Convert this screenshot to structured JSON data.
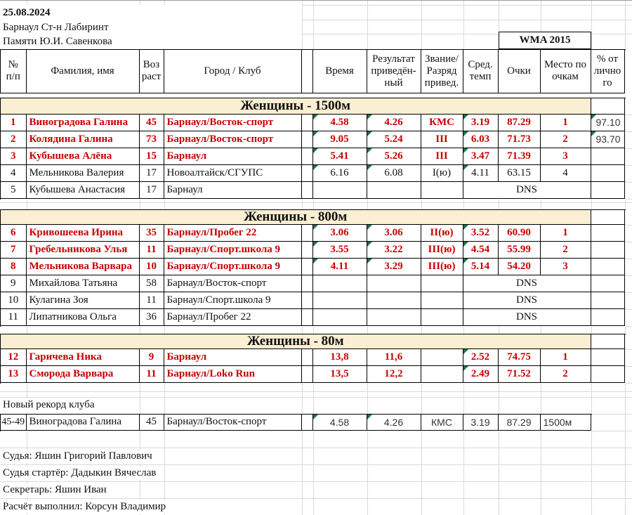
{
  "meta": {
    "date": "25.08.2024",
    "venue": "Барнаул Ст-н Лабиринт",
    "memorial": "Памяти Ю.И. Савенкова",
    "wma": "WMA 2015"
  },
  "header": {
    "num": "№\nп/п",
    "name": "Фамилия, имя",
    "age": "Воз\nраст",
    "club": "Город / Клуб",
    "time": "Время",
    "result": "Результат\nприведён-\nный",
    "rank": "Звание/\nРазряд\nпривед.",
    "tempo": "Сред.\nтемп",
    "points": "Очки",
    "place": "Место по\nочкам",
    "pct": "% от\nлично\nго"
  },
  "sections": [
    {
      "title": "Женщины - 1500м",
      "rows": [
        {
          "num": "1",
          "name": "Виноградова Галина",
          "age": "45",
          "club": "Барнаул/Восток-спорт",
          "time": "4.58",
          "result": "4.26",
          "rank": "КМС",
          "tempo": "3.19",
          "points": "87.29",
          "place": "1",
          "pct": "97.10"
        },
        {
          "num": "2",
          "name": "Колядина Галина",
          "age": "73",
          "club": "Барнаул/Восток-спорт",
          "time": "9.05",
          "result": "5.24",
          "rank": "III",
          "tempo": "6.03",
          "points": "71.73",
          "place": "2",
          "pct": "93.70"
        },
        {
          "num": "3",
          "name": "Кубышева Алёна",
          "age": "15",
          "club": "Барнаул",
          "time": "5.41",
          "result": "5.26",
          "rank": "III",
          "tempo": "3.47",
          "points": "71.39",
          "place": "3",
          "pct": ""
        },
        {
          "num": "4",
          "name": "Мельникова Валерия",
          "age": "17",
          "club": "Новоалтайск/СГУПС",
          "time": "6.16",
          "result": "6.08",
          "rank": "I(ю)",
          "tempo": "4.11",
          "points": "63.15",
          "place": "4",
          "pct": ""
        },
        {
          "num": "5",
          "name": "Кубышева Анастасия",
          "age": "17",
          "club": "Барнаул",
          "dns": "DNS",
          "pct": ""
        }
      ]
    },
    {
      "title": "Женщины - 800м",
      "rows": [
        {
          "num": "6",
          "name": "Кривошеева Ирина",
          "age": "35",
          "club": "Барнаул/Пробег 22",
          "time": "3.06",
          "result": "3.06",
          "rank": "II(ю)",
          "tempo": "3.52",
          "points": "60.90",
          "place": "1",
          "pct": ""
        },
        {
          "num": "7",
          "name": "Гребельникова Улья",
          "age": "11",
          "club": "Барнаул/Спорт.школа 9",
          "time": "3.55",
          "result": "3.22",
          "rank": "III(ю)",
          "tempo": "4.54",
          "points": "55.99",
          "place": "2",
          "pct": ""
        },
        {
          "num": "8",
          "name": "Мельникова Варвара",
          "age": "10",
          "club": "Барнаул/Спорт.школа 9",
          "time": "4.11",
          "result": "3.29",
          "rank": "III(ю)",
          "tempo": "5.14",
          "points": "54.20",
          "place": "3",
          "pct": ""
        },
        {
          "num": "9",
          "name": "Михайлова Татьяна",
          "age": "58",
          "club": "Барнаул/Восток-спорт",
          "dns": "DNS",
          "pct": ""
        },
        {
          "num": "10",
          "name": "Кулагина Зоя",
          "age": "11",
          "club": "Барнаул/Спорт.школа 9",
          "dns": "DNS",
          "pct": ""
        },
        {
          "num": "11",
          "name": "Липатникова Ольга",
          "age": "36",
          "club": "Барнаул/Пробег 22",
          "dns": "DNS",
          "pct": ""
        }
      ]
    },
    {
      "title": "Женщины - 80м",
      "rows": [
        {
          "num": "12",
          "name": "Гаричева Ника",
          "age": "9",
          "club": "Барнаул",
          "time": "13,8",
          "result": "11,6",
          "rank": "",
          "tempo": "2.52",
          "points": "74.75",
          "place": "1",
          "pct": ""
        },
        {
          "num": "13",
          "name": "Сморода Варвара",
          "age": "11",
          "club": "Барнаул/Loko Run",
          "time": "13,5",
          "result": "12,2",
          "rank": "",
          "tempo": "2.49",
          "points": "71.52",
          "place": "2",
          "pct": ""
        }
      ]
    }
  ],
  "record_note": "Новый рекорд клуба",
  "record": {
    "group": "45-49",
    "name": "Виноградова Галина",
    "age": "45",
    "club": "Барнаул/Восток-спорт",
    "time": "4.58",
    "result": "4.26",
    "rank": "КМС",
    "tempo": "3.19",
    "points": "87.29",
    "place": "1500м"
  },
  "footer": {
    "l1": "Судья: Яшин Григорий Павлович",
    "l2": "Судья стартёр: Дадыкин Вячеслав",
    "l3": "Секретарь: Яшин Иван",
    "l4": "Расчёт выполнил: Корсун Владимир"
  }
}
